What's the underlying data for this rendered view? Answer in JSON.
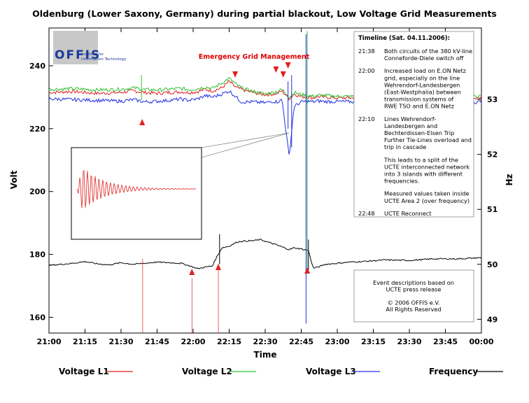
{
  "chart_data": {
    "type": "line",
    "title": "Oldenburg (Lower Saxony, Germany) during partial blackout, Low Voltage Grid Measurements",
    "xlabel": "Time",
    "ylabel": "Volt",
    "y2label": "Hz",
    "x_ticks": [
      "21:00",
      "21:15",
      "21:30",
      "21:45",
      "22:00",
      "22:15",
      "22:30",
      "22:45",
      "23:00",
      "23:15",
      "23:30",
      "23:45",
      "00:00"
    ],
    "x_range_minutes": [
      0,
      180
    ],
    "ylim": [
      155,
      252
    ],
    "y_ticks": [
      160,
      180,
      200,
      220,
      240
    ],
    "y2lim": [
      48.75,
      54.3
    ],
    "y2_ticks": [
      49,
      50,
      51,
      52,
      53
    ],
    "grid": false,
    "legend_position": "bottom",
    "series": [
      {
        "name": "Voltage L1",
        "color": "#e02020",
        "axis": "left",
        "x": [
          0,
          10,
          20,
          30,
          35,
          40,
          45,
          50,
          55,
          58,
          60,
          62,
          65,
          68,
          72,
          75,
          78,
          80,
          85,
          90,
          93,
          95,
          97,
          100,
          102,
          105,
          108,
          110,
          112,
          115,
          120,
          130,
          140,
          150,
          160,
          170,
          180
        ],
        "y": [
          231.5,
          231.8,
          231.2,
          231.5,
          232,
          231.5,
          231.2,
          231.5,
          231.7,
          231.5,
          231.6,
          231.8,
          232.5,
          232,
          233,
          235,
          233,
          232.5,
          231.5,
          230.8,
          231,
          231.2,
          232,
          229.5,
          231,
          230.2,
          230,
          229.8,
          230.2,
          230,
          229.8,
          229.7,
          229.5,
          229.7,
          229.8,
          229.6,
          229.7
        ]
      },
      {
        "name": "Voltage L2",
        "color": "#30c030",
        "axis": "left",
        "x": [
          0,
          10,
          20,
          30,
          35,
          40,
          45,
          50,
          55,
          58,
          60,
          62,
          65,
          68,
          72,
          75,
          78,
          80,
          85,
          90,
          93,
          95,
          97,
          100,
          102,
          105,
          108,
          110,
          112,
          115,
          120,
          130,
          140,
          150,
          160,
          170,
          180
        ],
        "y": [
          232.5,
          232.7,
          232.3,
          232.5,
          233,
          232.4,
          232.3,
          232.5,
          232.8,
          232.4,
          232.5,
          232.8,
          233.2,
          232.8,
          234.5,
          236,
          234,
          233,
          231.8,
          231,
          231.5,
          231.8,
          232.5,
          230,
          231.5,
          230.8,
          230.5,
          230.3,
          230.6,
          230.5,
          230.3,
          230.2,
          230,
          230.2,
          230.3,
          230.1,
          230.2
        ]
      },
      {
        "name": "Voltage L3",
        "color": "#2030e0",
        "axis": "left",
        "x": [
          0,
          10,
          20,
          30,
          35,
          40,
          45,
          50,
          55,
          58,
          60,
          62,
          65,
          68,
          72,
          75,
          78,
          80,
          85,
          90,
          93,
          95,
          97,
          100,
          102,
          105,
          108,
          110,
          112,
          115,
          120,
          130,
          140,
          150,
          160,
          170,
          180
        ],
        "y": [
          229.5,
          229.2,
          229,
          228.7,
          229.2,
          228.5,
          228.7,
          229,
          229.4,
          229,
          229.2,
          229.5,
          230.5,
          230,
          231,
          232,
          230,
          228.5,
          228.5,
          228.2,
          228.7,
          228.5,
          229.2,
          211,
          227,
          228.5,
          228.7,
          228.5,
          228.8,
          228.6,
          228.6,
          228.5,
          228.3,
          228.5,
          228.6,
          228.4,
          228.5
        ]
      },
      {
        "name": "Frequency",
        "color": "#000000",
        "axis": "right",
        "x": [
          0,
          5,
          10,
          15,
          20,
          25,
          30,
          35,
          40,
          45,
          50,
          55,
          58,
          60,
          62,
          65,
          68,
          70,
          72,
          75,
          78,
          80,
          85,
          88,
          90,
          95,
          98,
          100,
          102,
          105,
          108,
          110,
          112,
          115,
          120,
          125,
          130,
          140,
          150,
          160,
          170,
          180
        ],
        "y": [
          49.98,
          50.0,
          50.02,
          50.05,
          50.01,
          49.99,
          50.03,
          50.0,
          50.02,
          50.04,
          50.03,
          50.02,
          49.98,
          49.95,
          49.92,
          49.95,
          49.97,
          50.15,
          50.3,
          50.33,
          50.4,
          50.42,
          50.43,
          50.45,
          50.42,
          50.35,
          50.3,
          50.27,
          50.3,
          50.28,
          50.25,
          49.93,
          49.95,
          50.0,
          50.02,
          50.04,
          50.05,
          50.08,
          50.07,
          50.1,
          50.1,
          50.12
        ]
      }
    ],
    "annotations": {
      "logo": "OFFIS",
      "logo_subtitle": [
        "Institute for",
        "Information Technology"
      ],
      "emergency_label": "Emergency Grid Management",
      "timeline_title": "Timeline (Sat. 04.11.2006):",
      "timeline": [
        {
          "time": "21:38",
          "lines": [
            "Both circuits of the 380 kV-line",
            "Conneforde-Diele switch off"
          ]
        },
        {
          "time": "22:00",
          "lines": [
            "Increased load on E.ON Netz",
            "grid, especially on the line",
            "Wehrendorf-Landesbergen",
            "(East-Westphalia) between",
            "transmission systems of",
            "RWE TSO and E.ON Netz"
          ]
        },
        {
          "time": "22:10",
          "lines": [
            "Lines Wehrendorf-",
            "Landesbergen and",
            "Bechterdissen-Elsen Trip",
            "Further Tie-Lines overload and",
            "trip in cascade"
          ]
        },
        {
          "time": "",
          "lines": [
            "This leads to a split of the",
            "UCTE interconnected network",
            "into 3 islands with different",
            "frequencies."
          ]
        },
        {
          "time": "",
          "lines": [
            "Measured values taken inside",
            "UCTE Area 2 (over frequency)"
          ]
        },
        {
          "time": "22:48",
          "lines": [
            "UCTE Reconnect"
          ]
        }
      ],
      "note_lines": [
        "Event descriptions based on",
        "UCTE press release",
        "",
        "© 2006 OFFIS e.V.",
        "All Rights Reserved"
      ]
    }
  }
}
